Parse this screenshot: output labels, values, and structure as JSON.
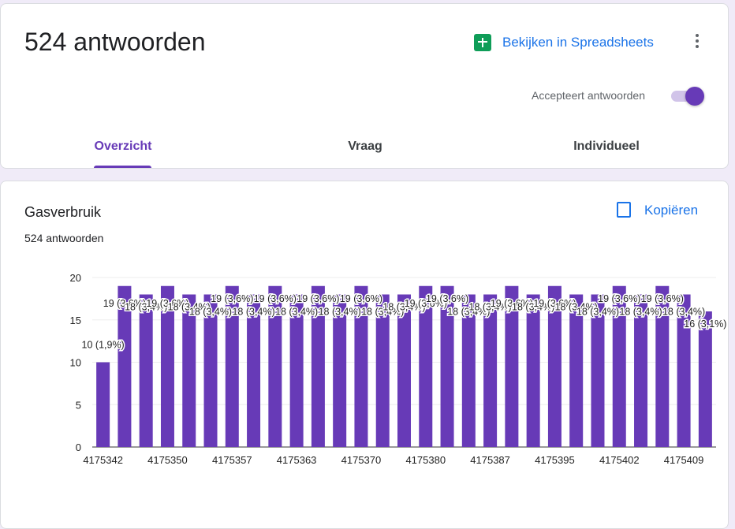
{
  "header": {
    "title": "524 antwoorden",
    "spreadsheet_button": "Bekijken in Spreadsheets",
    "accepting_label": "Accepteert antwoorden"
  },
  "tabs": [
    "Overzicht",
    "Vraag",
    "Individueel"
  ],
  "question": {
    "title": "Gasverbruik",
    "copy_button": "Kopiëren",
    "response_count": "524 antwoorden"
  },
  "chart_data": {
    "type": "bar",
    "color": "#673ab7",
    "grid": true,
    "ylim": [
      0,
      20
    ],
    "yticks": [
      0,
      5,
      10,
      15,
      20
    ],
    "categories": [
      "4175342",
      null,
      null,
      "4175350",
      null,
      null,
      "4175357",
      null,
      null,
      "4175363",
      null,
      null,
      "4175370",
      null,
      null,
      "4175380",
      null,
      null,
      "4175387",
      null,
      null,
      "4175395",
      null,
      null,
      "4175402",
      null,
      null,
      "4175409",
      null
    ],
    "values": [
      10,
      19,
      18,
      19,
      18,
      18,
      19,
      18,
      19,
      18,
      19,
      18,
      19,
      18,
      18,
      19,
      19,
      18,
      18,
      19,
      18,
      19,
      18,
      18,
      19,
      18,
      19,
      18,
      16
    ],
    "value_labels": [
      "10 (1,9%)",
      "19 (3,6%)",
      "18 (3,4%)",
      "19 (3,6%)",
      "18 (3,4%)",
      "18 (3,4%)",
      "19 (3,6%)",
      "18 (3,4%)",
      "19 (3,6%)",
      "18 (3,4%)",
      "19 (3,6%)",
      "18 (3,4%)",
      "19 (3,6%)",
      "18 (3,4%)",
      "18 (3,4%)",
      "19 (3,6%)",
      "19 (3,6%)",
      "18 (3,4%)",
      "18 (3,4%)",
      "19 (3,6%)",
      "18 (3,4%)",
      "19 (3,6%)",
      "18 (3,4%)",
      "18 (3,4%)",
      "19 (3,6%)",
      "18 (3,4%)",
      "19 (3,6%)",
      "18 (3,4%)",
      "16 (3,1%)"
    ]
  }
}
